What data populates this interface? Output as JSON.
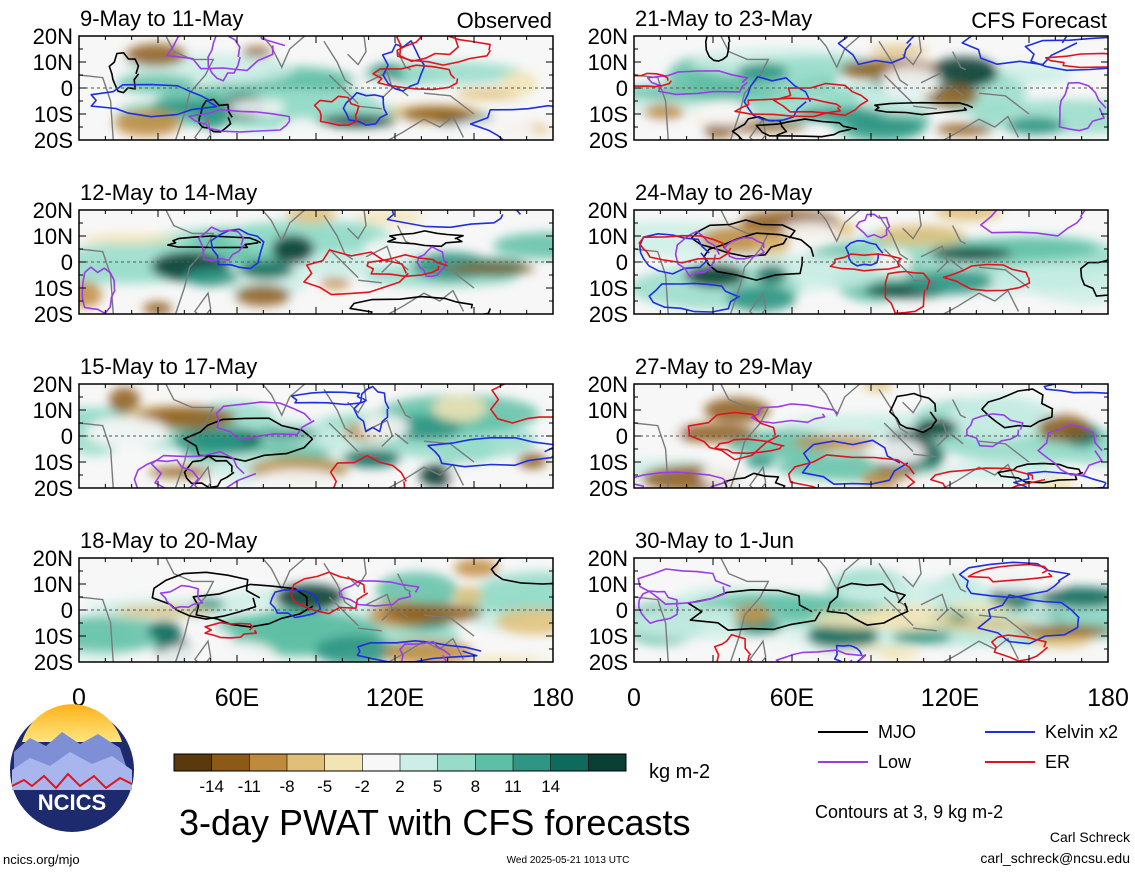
{
  "chart_data": {
    "type": "heatmap",
    "title": "3-day PWAT with CFS forecasts",
    "units": "kg m-2",
    "x_ticks": [
      "0",
      "60E",
      "120E",
      "180"
    ],
    "y_ticks": [
      "20N",
      "10N",
      "0",
      "10S",
      "20S"
    ],
    "colorbar": {
      "labels": [
        "-14",
        "-11",
        "-8",
        "-5",
        "-2",
        "2",
        "5",
        "8",
        "11",
        "14"
      ],
      "colors": [
        "#5a3a0c",
        "#8c5a16",
        "#c08a3c",
        "#e0bf78",
        "#f3e4b4",
        "#f7f7f7",
        "#cdeee6",
        "#97dcc9",
        "#5fbfa6",
        "#2e9683",
        "#0e6b5c",
        "#0a3f34"
      ]
    },
    "legend": {
      "placement": "bottom-right",
      "entries": [
        {
          "label": "MJO",
          "color": "#000000"
        },
        {
          "label": "Kelvin x2",
          "color": "#1f2fe0"
        },
        {
          "label": "Low",
          "color": "#9b3de6"
        },
        {
          "label": "ER",
          "color": "#e0141e"
        }
      ]
    },
    "contour_note": "Contours at 3, 9 kg m-2",
    "column_labels": {
      "observed": "Observed",
      "forecast": "CFS Forecast"
    },
    "panels": [
      {
        "period": "9-May to 11-May",
        "tag": "Observed",
        "source": "observed"
      },
      {
        "period": "12-May to 14-May",
        "source": "observed"
      },
      {
        "period": "15-May to 17-May",
        "source": "observed"
      },
      {
        "period": "18-May to 20-May",
        "source": "observed"
      },
      {
        "period": "21-May to 23-May",
        "tag": "CFS Forecast",
        "source": "forecast"
      },
      {
        "period": "24-May to 26-May",
        "source": "forecast"
      },
      {
        "period": "27-May to 29-May",
        "source": "forecast"
      },
      {
        "period": "30-May to 1-Jun",
        "source": "forecast"
      }
    ]
  },
  "logo": {
    "text": "NCICS"
  },
  "footer": {
    "url": "ncics.org/mjo",
    "timestamp": "Wed 2025-05-21 1013 UTC",
    "author": "Carl Schreck",
    "email": "carl_schreck@ncsu.edu"
  }
}
